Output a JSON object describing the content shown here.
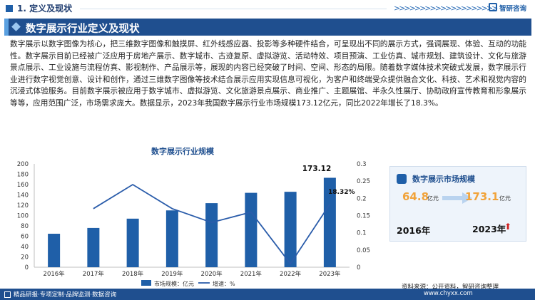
{
  "header": {
    "section_title": "1. 定义及现状",
    "arrows": ">>>>>>>>>>>>>>>>>>>>",
    "brand_name": "智研咨询"
  },
  "banner": {
    "title": "数字展示行业定义及现状"
  },
  "paragraph": "数字展示以数字图像为核心，把三维数字图像和触摸屏、红外线感应器、投影等多种硬件结合，可呈现出不同的展示方式，强调展现、体验、互动的功能性。数字展示目前已经被广泛应用于房地产展示、数字城市、古迹复原、虚拟游览、活动特效、项目预演、工业仿真、城市规划、建筑设计、文化与旅游景点展示、工业设施与流程仿真、影视制作、产品展示等，展现的内容已经突破了时间、空间、形态的局限。随着数字媒体技术突破式发展，数字展示行业进行数字视觉创意、设计和创作，通过三维数字图像等技术结合展示应用实现信息可视化，为客户和终端受众提供融合文化、科技、艺术和视觉内容的沉浸式体验服务。目前数字展示被应用于数字城市、虚拟游览、文化旅游景点展示、商业推广、主题展馆、半永久性展厅、协助政府宣传教育和形象展示等等，应用范围广泛，市场需求庞大。数据显示，2023年我国数字展示行业市场规模173.12亿元，同比2022年增长了18.3%。",
  "chart_data": {
    "type": "bar",
    "title": "数字展示行业规模",
    "categories": [
      "2016年",
      "2017年",
      "2018年",
      "2019年",
      "2020年",
      "2021年",
      "2022年",
      "2023年"
    ],
    "series": [
      {
        "name": "市场规模：亿元",
        "type": "bar",
        "axis": "left",
        "values": [
          64.8,
          76,
          94,
          110,
          124,
          144,
          146,
          173.12
        ],
        "color": "#1f5fa8"
      },
      {
        "name": "增速：%",
        "type": "line",
        "axis": "right",
        "values": [
          null,
          0.17,
          0.24,
          0.17,
          0.13,
          0.16,
          0.01,
          0.183
        ],
        "color": "#2a5caa"
      }
    ],
    "ylim": [
      0,
      200
    ],
    "y_ticks": [
      "0",
      "20",
      "40",
      "60",
      "80",
      "100",
      "120",
      "140",
      "160",
      "180",
      "200"
    ],
    "y2lim": [
      0,
      0.3
    ],
    "y2_ticks": [
      "0",
      "0.05",
      "0.1",
      "0.15",
      "0.2",
      "0.25",
      "0.3"
    ],
    "annotations": [
      "173.12",
      "18.32%"
    ],
    "legend": {
      "placement": "bottom",
      "bar_label": "市场规模：亿元",
      "line_label": "增速：%"
    },
    "grid": false
  },
  "card": {
    "title": "数字展示市场规模",
    "value_2016": "64.8",
    "unit_2016": "亿元",
    "value_2023": "173.1",
    "unit_2023": "亿元",
    "year_2016": "2016年",
    "year_2023": "2023年"
  },
  "source": "资料来源：公开资料，智研咨询整理",
  "footer": {
    "left": "精品研报·专项定制·品牌监测·数据咨询",
    "right": "www.chyxx.com"
  },
  "colors": {
    "primary": "#1f5fa8",
    "banner": "#1f4f8f",
    "accent": "#f1a33a",
    "up_arrow": "#d02020"
  }
}
